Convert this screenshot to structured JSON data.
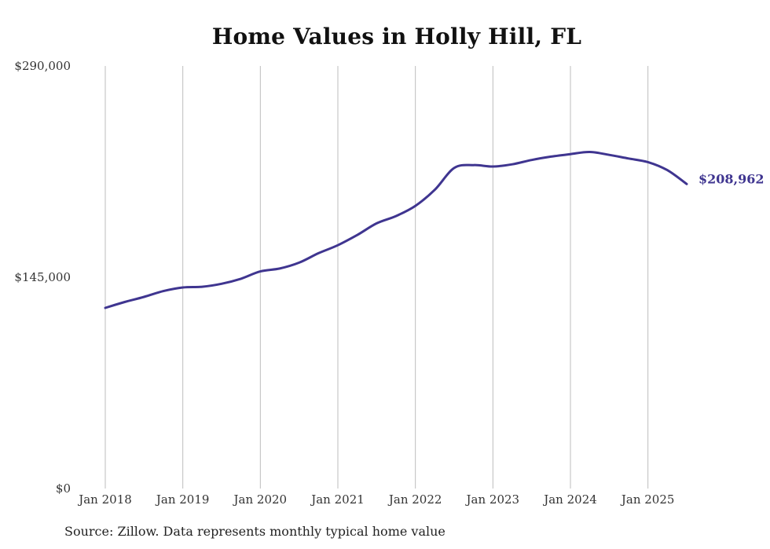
{
  "chart_data": {
    "type": "line",
    "title": "Home Values in Holly Hill, FL",
    "source_note": "Source: Zillow. Data represents monthly typical home value",
    "xlabel": "",
    "ylabel": "",
    "ylim": [
      0,
      290000
    ],
    "y_ticks": [
      {
        "value": 0,
        "label": "$0"
      },
      {
        "value": 145000,
        "label": "$145,000"
      },
      {
        "value": 290000,
        "label": "$290,000"
      }
    ],
    "x_ticks": [
      {
        "value": "2018-01",
        "label": "Jan 2018"
      },
      {
        "value": "2019-01",
        "label": "Jan 2019"
      },
      {
        "value": "2020-01",
        "label": "Jan 2020"
      },
      {
        "value": "2021-01",
        "label": "Jan 2021"
      },
      {
        "value": "2022-01",
        "label": "Jan 2022"
      },
      {
        "value": "2023-01",
        "label": "Jan 2023"
      },
      {
        "value": "2024-01",
        "label": "Jan 2024"
      },
      {
        "value": "2025-01",
        "label": "Jan 2025"
      }
    ],
    "xlim": [
      "2018-01",
      "2025-07"
    ],
    "grid": {
      "vertical": true,
      "horizontal": false
    },
    "line_color": "#3f3590",
    "end_label": "$208,962",
    "series": [
      {
        "x": [
          "2018-01",
          "2018-04",
          "2018-07",
          "2018-10",
          "2019-01",
          "2019-04",
          "2019-07",
          "2019-10",
          "2020-01",
          "2020-04",
          "2020-07",
          "2020-10",
          "2021-01",
          "2021-04",
          "2021-07",
          "2021-10",
          "2022-01",
          "2022-04",
          "2022-07",
          "2022-10",
          "2023-01",
          "2023-04",
          "2023-07",
          "2023-10",
          "2024-01",
          "2024-04",
          "2024-07",
          "2024-10",
          "2025-01",
          "2025-04",
          "2025-07"
        ],
        "values": [
          124000,
          128000,
          131500,
          135500,
          138000,
          138500,
          140500,
          144000,
          149000,
          151000,
          155000,
          161500,
          167000,
          174000,
          182000,
          187000,
          194000,
          205000,
          220000,
          222000,
          221000,
          222500,
          225500,
          227800,
          229500,
          231000,
          229000,
          226500,
          224000,
          218500,
          208962
        ]
      }
    ]
  }
}
